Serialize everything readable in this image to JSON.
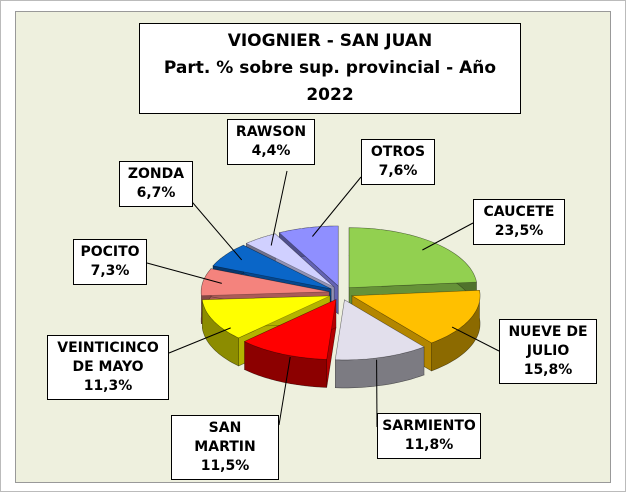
{
  "chart_data": {
    "type": "pie3d",
    "title": "VIOGNIER - SAN JUAN",
    "subtitle": "Part. % sobre sup. provincial  - Año 2022",
    "categories": [
      "CAUCETE",
      "NUEVE DE JULIO",
      "SARMIENTO",
      "SAN MARTIN",
      "VEINTICINCO DE MAYO",
      "POCITO",
      "ZONDA",
      "RAWSON",
      "OTROS"
    ],
    "values": [
      23.5,
      15.8,
      11.8,
      11.5,
      11.3,
      7.3,
      6.7,
      4.4,
      7.6
    ],
    "value_labels": [
      "23,5%",
      "15,8%",
      "11,8%",
      "11,5%",
      "11,3%",
      "7,3%",
      "6,7%",
      "4,4%",
      "7,6%"
    ],
    "colors": [
      "#92d050",
      "#ffc000",
      "#e2dfec",
      "#ff0000",
      "#ffff00",
      "#f4837d",
      "#0a66c8",
      "#d0d0ff",
      "#8f8fff"
    ]
  }
}
